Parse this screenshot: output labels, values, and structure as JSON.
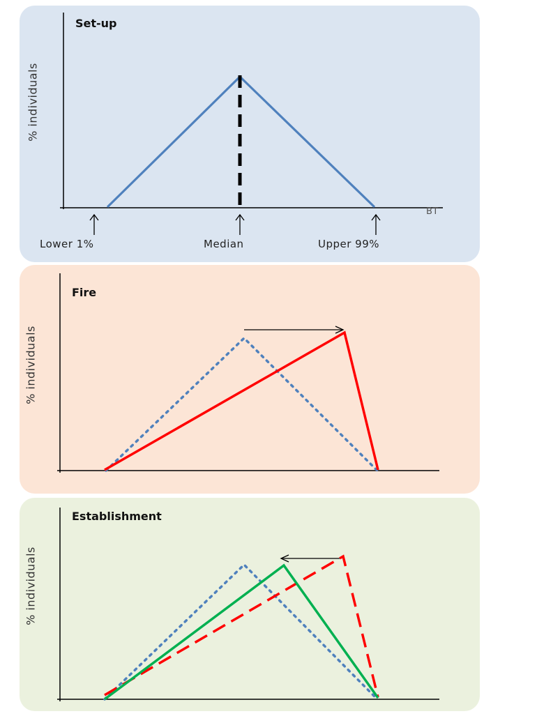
{
  "panels": {
    "setup": {
      "title": "Set-up",
      "ylabel": "% individuals",
      "xlabel": "BT",
      "markers": [
        "Lower 1%",
        "Median",
        "Upper 99%"
      ]
    },
    "fire": {
      "title": "Fire",
      "ylabel": "% individuals"
    },
    "establishment": {
      "title": "Establishment",
      "ylabel": "% individuals"
    }
  },
  "colors": {
    "setup_bg": "#dbe5f1",
    "fire_bg": "#fce5d6",
    "establishment_bg": "#ebf1de",
    "baseline": "#4f81bd",
    "fire": "#ff0000",
    "establishment": "#00b050"
  }
}
